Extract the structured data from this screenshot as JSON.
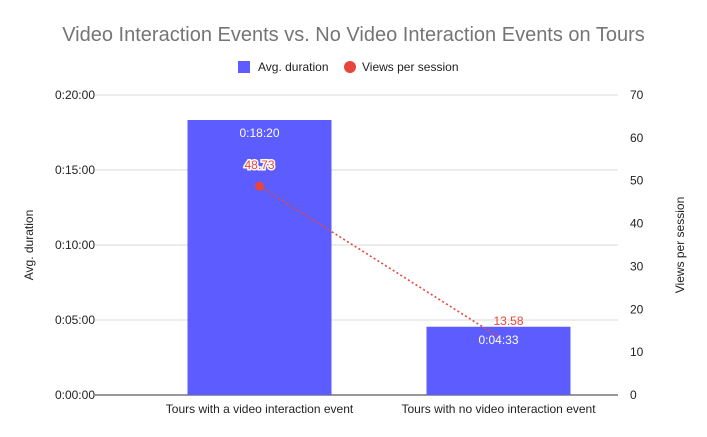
{
  "chart_data": {
    "type": "bar",
    "title": "Video Interaction Events vs. No Video Interaction Events on Tours",
    "categories": [
      "Tours with a video interaction event",
      "Tours with no video interaction event"
    ],
    "series": [
      {
        "name": "Avg. duration",
        "type": "bar",
        "axis": "left",
        "values_seconds": [
          1100,
          273
        ],
        "labels": [
          "0:18:20",
          "0:04:33"
        ],
        "color": "#5c5cff"
      },
      {
        "name": "Views per session",
        "type": "line",
        "axis": "right",
        "values": [
          48.73,
          13.58
        ],
        "labels": [
          "48.73",
          "13.58"
        ],
        "color": "#e8453c",
        "line_style": "dotted"
      }
    ],
    "y_left": {
      "label": "Avg. duration",
      "range_seconds": [
        0,
        1200
      ],
      "ticks_seconds": [
        0,
        300,
        600,
        900,
        1200
      ],
      "tick_labels": [
        "0:00:00",
        "0:05:00",
        "0:10:00",
        "0:15:00",
        "0:20:00"
      ]
    },
    "y_right": {
      "label": "Views per session",
      "range": [
        0,
        70
      ],
      "ticks": [
        0,
        10,
        20,
        30,
        40,
        50,
        60,
        70
      ],
      "tick_labels": [
        "0",
        "10",
        "20",
        "30",
        "40",
        "50",
        "60",
        "70"
      ]
    },
    "legend": {
      "position": "top"
    },
    "grid": true
  }
}
